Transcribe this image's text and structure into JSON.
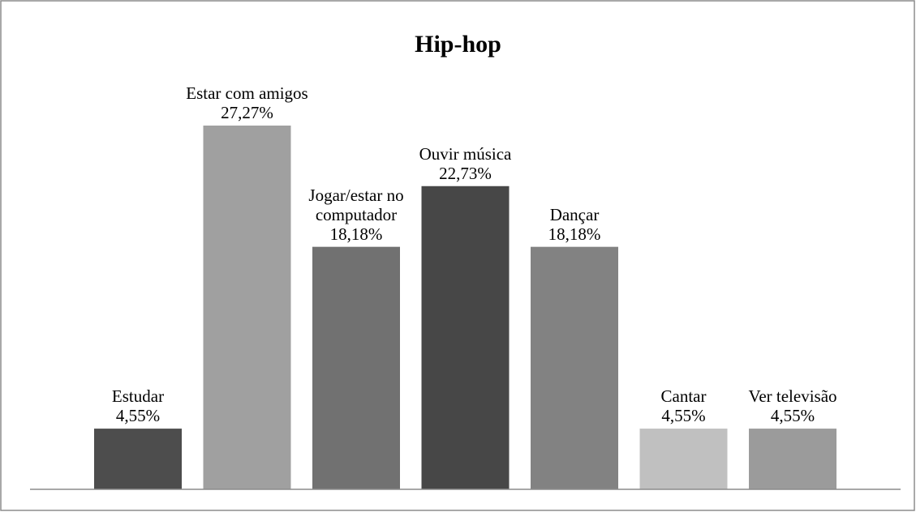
{
  "chart_data": {
    "type": "bar",
    "title": "Hip-hop",
    "categories": [
      "Estudar",
      "Estar com amigos",
      "Jogar/estar no computador",
      "Ouvir música",
      "Dançar",
      "Cantar",
      "Ver televisão"
    ],
    "values": [
      4.55,
      27.27,
      18.18,
      22.73,
      18.18,
      4.55,
      4.55
    ],
    "value_labels": [
      "4,55%",
      "27,27%",
      "18,18%",
      "22,73%",
      "18,18%",
      "4,55%",
      "4,55%"
    ],
    "colors": [
      "#4d4d4d",
      "#a0a0a0",
      "#717171",
      "#474747",
      "#828282",
      "#c0c0c0",
      "#9b9b9b"
    ]
  }
}
